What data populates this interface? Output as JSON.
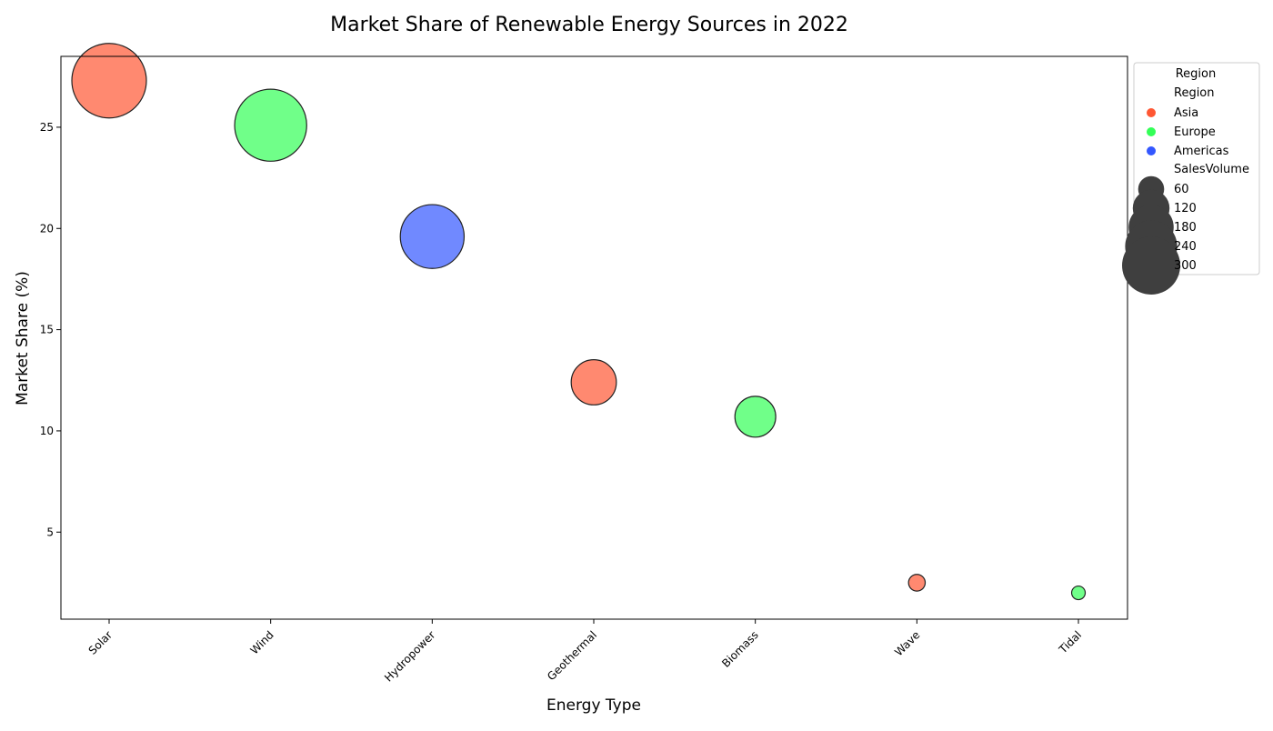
{
  "chart_data": {
    "type": "scatter",
    "title": "Market Share of Renewable Energy Sources in 2022",
    "xlabel": "Energy Type",
    "ylabel": "Market Share (%)",
    "categories": [
      "Solar",
      "Wind",
      "Hydropower",
      "Geothermal",
      "Biomass",
      "Wave",
      "Tidal"
    ],
    "ylim": [
      0.7,
      28.5
    ],
    "yticks": [
      5,
      10,
      15,
      20,
      25
    ],
    "grid": false,
    "points": [
      {
        "category": "Solar",
        "y": 27.3,
        "region": "Asia",
        "size": 300
      },
      {
        "category": "Wind",
        "y": 25.1,
        "region": "Europe",
        "size": 280
      },
      {
        "category": "Hydropower",
        "y": 19.6,
        "region": "Americas",
        "size": 220
      },
      {
        "category": "Geothermal",
        "y": 12.4,
        "region": "Asia",
        "size": 110
      },
      {
        "category": "Biomass",
        "y": 10.7,
        "region": "Europe",
        "size": 90
      },
      {
        "category": "Wave",
        "y": 2.5,
        "region": "Asia",
        "size": 15
      },
      {
        "category": "Tidal",
        "y": 2.0,
        "region": "Europe",
        "size": 10
      }
    ],
    "legend": {
      "placement": "outside-right",
      "title": "Region",
      "hue_title": "Region",
      "hue_entries": [
        {
          "label": "Asia",
          "color": "#ff5733"
        },
        {
          "label": "Europe",
          "color": "#33ff57"
        },
        {
          "label": "Americas",
          "color": "#3357ff"
        }
      ],
      "size_title": "SalesVolume",
      "size_entries": [
        {
          "label": "60",
          "size": 60
        },
        {
          "label": "120",
          "size": 120
        },
        {
          "label": "180",
          "size": 180
        },
        {
          "label": "240",
          "size": 240
        },
        {
          "label": "300",
          "size": 300
        }
      ]
    },
    "colors": {
      "Asia": "#ff5733",
      "Europe": "#33ff57",
      "Americas": "#3357ff"
    }
  }
}
